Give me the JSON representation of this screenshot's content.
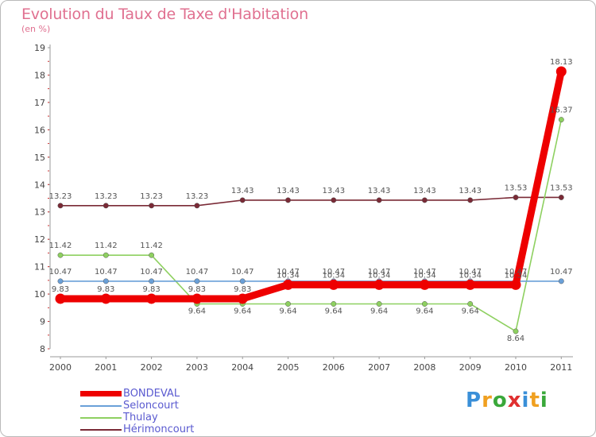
{
  "title": "Evolution du Taux de Taxe d'Habitation",
  "subtitle": "(en %)",
  "logo": {
    "text": "Proxiti",
    "letters": [
      {
        "ch": "P",
        "color": "#3a8fd8"
      },
      {
        "ch": "r",
        "color": "#f0a020"
      },
      {
        "ch": "o",
        "color": "#3aa83a"
      },
      {
        "ch": "x",
        "color": "#e03030"
      },
      {
        "ch": "i",
        "color": "#3a8fd8"
      },
      {
        "ch": "t",
        "color": "#f0a020"
      },
      {
        "ch": "i",
        "color": "#3aa83a"
      }
    ]
  },
  "chart_data": {
    "type": "line",
    "x": [
      "2000",
      "2001",
      "2002",
      "2003",
      "2004",
      "2005",
      "2006",
      "2007",
      "2008",
      "2009",
      "2010",
      "2011"
    ],
    "ylim": [
      8,
      19
    ],
    "yticks": [
      8,
      9,
      10,
      11,
      12,
      13,
      14,
      15,
      16,
      17,
      18,
      19
    ],
    "grid": false,
    "legend_position": "bottom-left",
    "series": [
      {
        "name": "Hérimoncourt",
        "color": "#7a2a36",
        "values": [
          13.23,
          13.23,
          13.23,
          13.23,
          13.43,
          13.43,
          13.43,
          13.43,
          13.43,
          13.43,
          13.53,
          13.53
        ],
        "labels": [
          "13.23",
          "13.23",
          "13.23",
          "13.23",
          "13.43",
          "13.43",
          "13.43",
          "13.43",
          "13.43",
          "13.43",
          "13.53",
          "13.53"
        ]
      },
      {
        "name": "Thulay",
        "color": "#8ed060",
        "values": [
          11.42,
          11.42,
          11.42,
          9.64,
          9.64,
          9.64,
          9.64,
          9.64,
          9.64,
          9.64,
          8.64,
          16.37
        ],
        "labels": [
          "11.42",
          "11.42",
          "11.42",
          "9.64",
          "9.64",
          "9.64",
          "9.64",
          "9.64",
          "9.64",
          "9.64",
          "8.64",
          "16.37"
        ]
      },
      {
        "name": "Seloncourt",
        "color": "#6aa0d8",
        "values": [
          10.47,
          10.47,
          10.47,
          10.47,
          10.47,
          10.47,
          10.47,
          10.47,
          10.47,
          10.47,
          10.47,
          10.47
        ],
        "labels": [
          "10.47",
          "10.47",
          "10.47",
          "10.47",
          "10.47",
          "10.47",
          "10.47",
          "10.47",
          "10.47",
          "10.47",
          "10.47",
          "10.47"
        ]
      },
      {
        "name": "BONDEVAL",
        "color": "#ee0000",
        "values": [
          9.83,
          9.83,
          9.83,
          9.83,
          9.83,
          10.34,
          10.34,
          10.34,
          10.34,
          10.34,
          10.34,
          18.13
        ],
        "labels": [
          "9.83",
          "9.83",
          "9.83",
          "9.83",
          "9.83",
          "10.34",
          "10.34",
          "10.34",
          "10.34",
          "10.34",
          "10.34",
          "18.13"
        ]
      }
    ]
  }
}
